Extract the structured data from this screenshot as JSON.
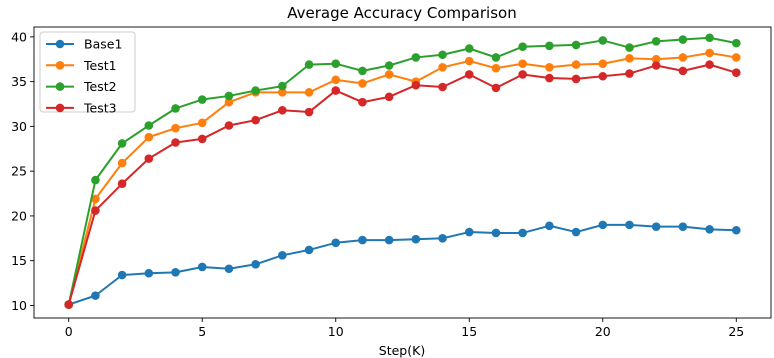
{
  "chart_data": {
    "type": "line",
    "title": "Average Accuracy Comparison",
    "xlabel": "Step(K)",
    "ylabel": "",
    "xlim": [
      -1.3,
      26.3
    ],
    "ylim": [
      8.6,
      41.1
    ],
    "x_ticks": [
      0,
      5,
      10,
      15,
      20,
      25
    ],
    "y_ticks": [
      10,
      15,
      20,
      25,
      30,
      35,
      40
    ],
    "grid": false,
    "legend_position": "upper-left",
    "x": [
      0,
      1,
      2,
      3,
      4,
      5,
      6,
      7,
      8,
      9,
      10,
      11,
      12,
      13,
      14,
      15,
      16,
      17,
      18,
      19,
      20,
      21,
      22,
      23,
      24,
      25
    ],
    "series": [
      {
        "name": "Base1",
        "color": "#1f77b4",
        "values": [
          10.1,
          11.1,
          13.4,
          13.6,
          13.7,
          14.3,
          14.1,
          14.6,
          15.6,
          16.2,
          17.0,
          17.3,
          17.3,
          17.4,
          17.5,
          18.2,
          18.1,
          18.1,
          18.9,
          18.2,
          19.0,
          19.0,
          18.8,
          18.8,
          18.5,
          18.4
        ]
      },
      {
        "name": "Test1",
        "color": "#ff7f0e",
        "values": [
          10.1,
          21.9,
          25.9,
          28.8,
          29.8,
          30.4,
          32.7,
          33.8,
          33.8,
          33.8,
          35.2,
          34.8,
          35.8,
          35.0,
          36.6,
          37.3,
          36.5,
          37.0,
          36.6,
          36.9,
          37.0,
          37.6,
          37.5,
          37.7,
          38.2,
          37.7
        ]
      },
      {
        "name": "Test2",
        "color": "#2ca02c",
        "values": [
          10.1,
          24.0,
          28.1,
          30.1,
          32.0,
          33.0,
          33.4,
          34.0,
          34.5,
          36.9,
          37.0,
          36.2,
          36.8,
          37.7,
          38.0,
          38.7,
          37.7,
          38.9,
          39.0,
          39.1,
          39.6,
          38.8,
          39.5,
          39.7,
          39.9,
          39.3
        ]
      },
      {
        "name": "Test3",
        "color": "#d62728",
        "values": [
          10.1,
          20.6,
          23.6,
          26.4,
          28.2,
          28.6,
          30.1,
          30.7,
          31.8,
          31.6,
          34.0,
          32.7,
          33.3,
          34.6,
          34.4,
          35.8,
          34.3,
          35.8,
          35.4,
          35.3,
          35.6,
          35.9,
          36.8,
          36.2,
          36.9,
          36.0
        ]
      }
    ]
  }
}
